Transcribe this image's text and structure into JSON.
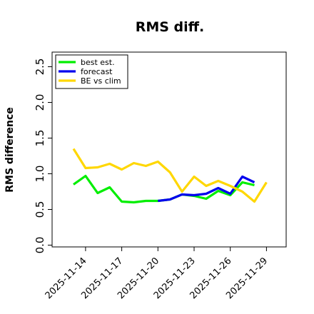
{
  "chart_data": {
    "type": "line",
    "title": "RMS diff.",
    "xlabel": "",
    "ylabel": "RMS difference",
    "ylim": [
      0,
      2.6
    ],
    "yticks": [
      "0.0",
      "0.5",
      "1.0",
      "1.5",
      "2.0",
      "2.5"
    ],
    "x": [
      "2025-11-13",
      "2025-11-14",
      "2025-11-15",
      "2025-11-16",
      "2025-11-17",
      "2025-11-18",
      "2025-11-19",
      "2025-11-20",
      "2025-11-21",
      "2025-11-22",
      "2025-11-23",
      "2025-11-24",
      "2025-11-25",
      "2025-11-26",
      "2025-11-27",
      "2025-11-28",
      "2025-11-29"
    ],
    "xticks": [
      {
        "label": "2025-11-14",
        "color": "#000000"
      },
      {
        "label": "2025-11-17",
        "color": "#000000"
      },
      {
        "label": "2025-11-20",
        "color": "#228b22"
      },
      {
        "label": "2025-11-23",
        "color": "#000000"
      },
      {
        "label": "2025-11-26",
        "color": "#000000"
      },
      {
        "label": "2025-11-29",
        "color": "#000000"
      }
    ],
    "grid": false,
    "legend_position": "top-left",
    "series": [
      {
        "name": "best est.",
        "color": "#00ee00",
        "values": [
          0.85,
          0.97,
          0.73,
          0.81,
          0.61,
          0.6,
          0.62,
          0.62,
          0.64,
          0.71,
          0.69,
          0.65,
          0.76,
          0.7,
          0.88,
          0.84,
          null
        ]
      },
      {
        "name": "forecast",
        "color": "#0000ee",
        "values": [
          null,
          null,
          null,
          null,
          null,
          null,
          null,
          0.62,
          0.64,
          0.71,
          0.7,
          0.72,
          0.8,
          0.72,
          0.96,
          0.88,
          null
        ]
      },
      {
        "name": "BE vs clim",
        "color": "#ffd700",
        "values": [
          1.35,
          1.08,
          1.09,
          1.14,
          1.06,
          1.15,
          1.11,
          1.17,
          1.02,
          0.75,
          0.96,
          0.83,
          0.9,
          0.83,
          0.75,
          0.61,
          0.88
        ]
      }
    ]
  }
}
